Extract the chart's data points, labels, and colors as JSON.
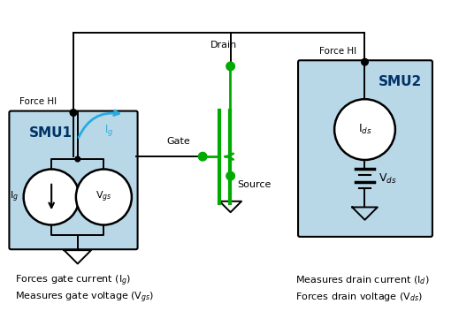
{
  "bg_color": "#ffffff",
  "box_color": "#b8d8e8",
  "box_edge": "#000000",
  "green_color": "#00aa00",
  "blue_arrow_color": "#29abe2",
  "black_color": "#000000",
  "dark_blue_text": "#003366",
  "figsize": [
    5.19,
    3.61
  ],
  "dpi": 100,
  "smu1_label": "SMU1",
  "smu2_label": "SMU2",
  "force_hi": "Force HI",
  "gate_label": "Gate",
  "drain_label": "Drain",
  "source_label": "Source",
  "ids_label": "I$_{ds}$",
  "ig_label": "I$_g$",
  "vgs_label": "V$_{gs}$",
  "vds_label": "V$_{ds}$",
  "caption1_left": "Forces gate current (I$_g$)",
  "caption2_left": "Measures gate voltage (V$_{gs}$)",
  "caption1_right": "Measures drain current (I$_d$)",
  "caption2_right": "Forces drain voltage (V$_{ds}$)"
}
